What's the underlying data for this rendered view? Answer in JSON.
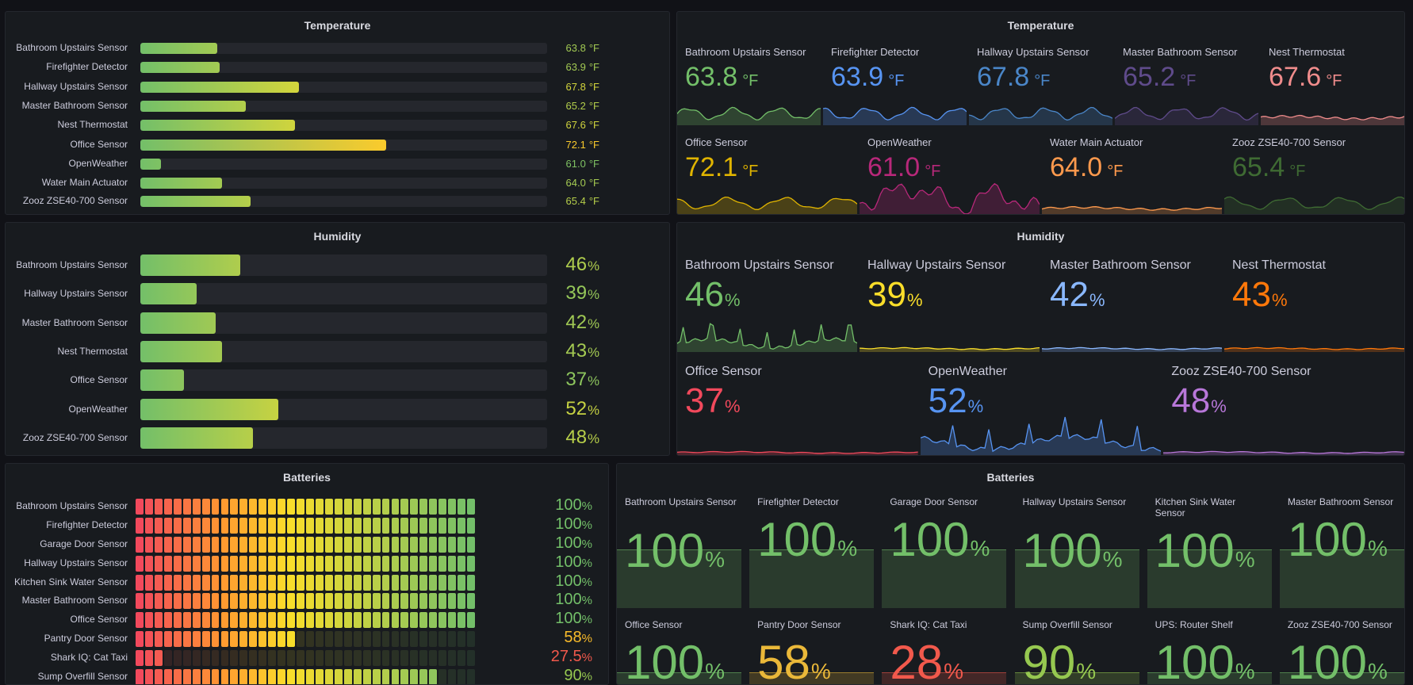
{
  "colors": {
    "background": "#111217",
    "panel": "#181b1f",
    "green": "#73bf69",
    "yellow": "#fade2a",
    "orange": "#ff9830",
    "red": "#f2495c"
  },
  "temperature_bars": {
    "title": "Temperature",
    "unit": "°F",
    "min": 60,
    "max": 80,
    "items": [
      {
        "label": "Bathroom Upstairs Sensor",
        "value": "63.8"
      },
      {
        "label": "Firefighter Detector",
        "value": "63.9"
      },
      {
        "label": "Hallway Upstairs Sensor",
        "value": "67.8"
      },
      {
        "label": "Master Bathroom Sensor",
        "value": "65.2"
      },
      {
        "label": "Nest Thermostat",
        "value": "67.6"
      },
      {
        "label": "Office Sensor",
        "value": "72.1"
      },
      {
        "label": "OpenWeather",
        "value": "61.0"
      },
      {
        "label": "Water Main Actuator",
        "value": "64.0"
      },
      {
        "label": "Zooz ZSE40-700 Sensor",
        "value": "65.4"
      }
    ]
  },
  "temperature_stats": {
    "title": "Temperature",
    "unit": "°F",
    "items": [
      {
        "label": "Bathroom Upstairs Sensor",
        "value": "63.8",
        "color": "#73bf69"
      },
      {
        "label": "Firefighter Detector",
        "value": "63.9",
        "color": "#5794f2"
      },
      {
        "label": "Hallway Upstairs Sensor",
        "value": "67.8",
        "color": "#4a86c8"
      },
      {
        "label": "Master Bathroom Sensor",
        "value": "65.2",
        "color": "#5f4b8b"
      },
      {
        "label": "Nest Thermostat",
        "value": "67.6",
        "color": "#f08c8c"
      },
      {
        "label": "Office Sensor",
        "value": "72.1",
        "color": "#e0b400"
      },
      {
        "label": "OpenWeather",
        "value": "61.0",
        "color": "#b8287a"
      },
      {
        "label": "Water Main Actuator",
        "value": "64.0",
        "color": "#ff9a4d"
      },
      {
        "label": "Zooz ZSE40-700 Sensor",
        "value": "65.4",
        "color": "#3f6b33"
      }
    ]
  },
  "humidity_bars": {
    "title": "Humidity",
    "unit": "%",
    "min": 30,
    "max": 95,
    "items": [
      {
        "label": "Bathroom Upstairs Sensor",
        "value": "46"
      },
      {
        "label": "Hallway Upstairs Sensor",
        "value": "39"
      },
      {
        "label": "Master Bathroom Sensor",
        "value": "42"
      },
      {
        "label": "Nest Thermostat",
        "value": "43"
      },
      {
        "label": "Office Sensor",
        "value": "37"
      },
      {
        "label": "OpenWeather",
        "value": "52"
      },
      {
        "label": "Zooz ZSE40-700 Sensor",
        "value": "48"
      }
    ]
  },
  "humidity_stats": {
    "title": "Humidity",
    "unit": "%",
    "items": [
      {
        "label": "Bathroom Upstairs Sensor",
        "value": "46",
        "color": "#73bf69"
      },
      {
        "label": "Hallway Upstairs Sensor",
        "value": "39",
        "color": "#fade2a"
      },
      {
        "label": "Master Bathroom Sensor",
        "value": "42",
        "color": "#8ab8ff"
      },
      {
        "label": "Nest Thermostat",
        "value": "43",
        "color": "#ff780a"
      },
      {
        "label": "Office Sensor",
        "value": "37",
        "color": "#f2495c"
      },
      {
        "label": "OpenWeather",
        "value": "52",
        "color": "#5794f2"
      },
      {
        "label": "Zooz ZSE40-700 Sensor",
        "value": "48",
        "color": "#b877d9"
      }
    ]
  },
  "battery_gauges": {
    "title": "Batteries",
    "unit": "%",
    "min": 20,
    "max": 100,
    "items": [
      {
        "label": "Bathroom Upstairs Sensor",
        "value": "100",
        "color": "#73bf69"
      },
      {
        "label": "Firefighter Detector",
        "value": "100",
        "color": "#73bf69"
      },
      {
        "label": "Garage Door Sensor",
        "value": "100",
        "color": "#73bf69"
      },
      {
        "label": "Hallway Upstairs Sensor",
        "value": "100",
        "color": "#73bf69"
      },
      {
        "label": "Kitchen Sink Water Sensor",
        "value": "100",
        "color": "#73bf69"
      },
      {
        "label": "Master Bathroom Sensor",
        "value": "100",
        "color": "#73bf69"
      },
      {
        "label": "Office Sensor",
        "value": "100",
        "color": "#73bf69"
      },
      {
        "label": "Pantry Door Sensor",
        "value": "58",
        "color": "#fabc2a"
      },
      {
        "label": "Shark IQ: Cat Taxi",
        "value": "27.5",
        "color": "#f2594c"
      },
      {
        "label": "Sump Overfill Sensor",
        "value": "90",
        "color": "#96c850"
      }
    ]
  },
  "battery_stats": {
    "title": "Batteries",
    "unit": "%",
    "items": [
      {
        "label": "Bathroom Upstairs Sensor",
        "value": "100",
        "color": "#73bf69"
      },
      {
        "label": "Firefighter Detector",
        "value": "100",
        "color": "#73bf69"
      },
      {
        "label": "Garage Door Sensor",
        "value": "100",
        "color": "#73bf69"
      },
      {
        "label": "Hallway Upstairs Sensor",
        "value": "100",
        "color": "#73bf69"
      },
      {
        "label": "Kitchen Sink Water Sensor",
        "value": "100",
        "color": "#73bf69"
      },
      {
        "label": "Master Bathroom Sensor",
        "value": "100",
        "color": "#73bf69"
      },
      {
        "label": "Office Sensor",
        "value": "100",
        "color": "#73bf69"
      },
      {
        "label": "Pantry Door Sensor",
        "value": "58",
        "color": "#eab839"
      },
      {
        "label": "Shark IQ: Cat Taxi",
        "value": "28",
        "color": "#f2594c"
      },
      {
        "label": "Sump Overfill Sensor",
        "value": "90",
        "color": "#96c850"
      },
      {
        "label": "UPS: Router Shelf",
        "value": "100",
        "color": "#73bf69"
      },
      {
        "label": "Zooz ZSE40-700 Sensor",
        "value": "100",
        "color": "#73bf69"
      }
    ]
  }
}
